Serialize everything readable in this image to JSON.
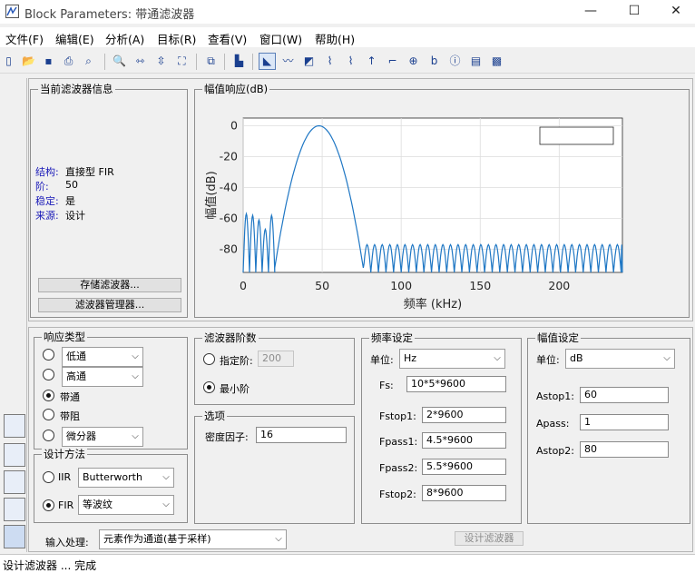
{
  "window": {
    "title": "Block Parameters: 带通滤波器",
    "minimize": "—",
    "maximize": "☐",
    "close": "✕"
  },
  "menu": [
    "文件(F)",
    "编辑(E)",
    "分析(A)",
    "目标(R)",
    "查看(V)",
    "窗口(W)",
    "帮助(H)"
  ],
  "toolbar_icons": [
    "new-icon",
    "open-icon",
    "save-icon",
    "print-icon",
    "print-preview-icon",
    "zoom-in-icon",
    "zoom-x-icon",
    "zoom-y-icon",
    "full-view-icon",
    "new-figure-icon",
    "filter-specs-icon",
    "magnitude-response-icon",
    "phase-response-icon",
    "magnitude-phase-icon",
    "group-delay-icon",
    "phase-delay-icon",
    "impulse-response-icon",
    "step-response-icon",
    "pole-zero-icon",
    "filter-coefficients-icon",
    "filter-info-icon",
    "magnitude-estimate-icon",
    "round-off-noise-icon"
  ],
  "current_filter": {
    "legend": "当前滤波器信息",
    "rows": [
      {
        "key": "结构:",
        "value": "直接型 FIR"
      },
      {
        "key": "阶:",
        "value": "50"
      },
      {
        "key": "稳定:",
        "value": "是"
      },
      {
        "key": "来源:",
        "value": "设计"
      }
    ],
    "store_button": "存储滤波器...",
    "manager_button": "滤波器管理器..."
  },
  "magnitude_panel": {
    "legend": "幅值响应(dB)"
  },
  "chart_data": {
    "type": "line",
    "title": "",
    "xlabel": "频率 (kHz)",
    "ylabel": "幅值(dB)",
    "xlim": [
      0,
      240
    ],
    "ylim": [
      -95,
      5
    ],
    "xticks": [
      0,
      50,
      100,
      150,
      200
    ],
    "yticks": [
      0,
      -20,
      -40,
      -60,
      -80
    ],
    "grid": true,
    "series": [
      {
        "description": "bandpass equiripple response",
        "passband_x": [
          20,
          48,
          76
        ],
        "passband_peak_db": 0,
        "stopband_level_db": -77
      }
    ]
  },
  "response_type": {
    "legend": "响应类型",
    "options": [
      "低通",
      "高通",
      "带通",
      "带阻",
      "微分器"
    ],
    "selected_index": 2
  },
  "design_method": {
    "legend": "设计方法",
    "iir_label": "IIR",
    "iir_value": "Butterworth",
    "fir_label": "FIR",
    "fir_value": "等波纹",
    "selected": "FIR"
  },
  "filter_order": {
    "legend": "滤波器阶数",
    "specify_label": "指定阶:",
    "specify_value": "200",
    "minimum_label": "最小阶",
    "selected": "minimum"
  },
  "options": {
    "legend": "选项",
    "density_label": "密度因子:",
    "density_value": "16"
  },
  "frequency_specs": {
    "legend": "频率设定",
    "unit_label": "单位:",
    "unit_value": "Hz",
    "fields": [
      {
        "label": "Fs:",
        "value": "10*5*9600"
      },
      {
        "label": "Fstop1:",
        "value": "2*9600"
      },
      {
        "label": "Fpass1:",
        "value": "4.5*9600"
      },
      {
        "label": "Fpass2:",
        "value": "5.5*9600"
      },
      {
        "label": "Fstop2:",
        "value": "8*9600"
      }
    ]
  },
  "magnitude_specs": {
    "legend": "幅值设定",
    "unit_label": "单位:",
    "unit_value": "dB",
    "fields": [
      {
        "label": "Astop1:",
        "value": "60"
      },
      {
        "label": "Apass:",
        "value": "1"
      },
      {
        "label": "Astop2:",
        "value": "80"
      }
    ]
  },
  "input_processing": {
    "label": "输入处理:",
    "value": "元素作为通道(基于采样)"
  },
  "design_button": "设计滤波器",
  "status": "设计滤波器 ... 完成"
}
